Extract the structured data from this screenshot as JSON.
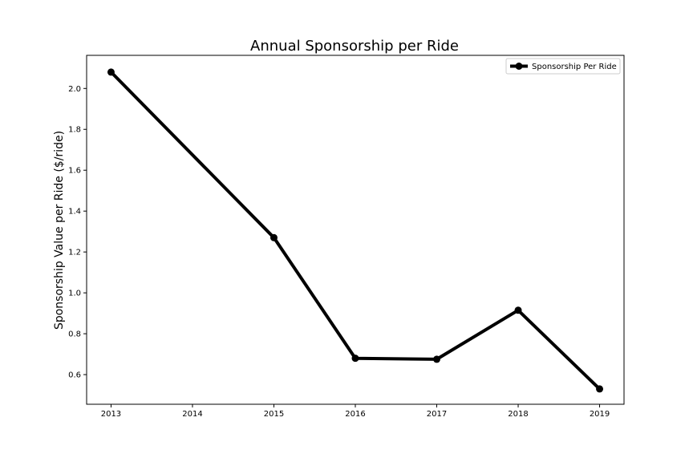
{
  "chart_data": {
    "type": "line",
    "title": "Annual Sponsorship per Ride",
    "xlabel": "",
    "ylabel": "Sponsorship Value per Ride ($/ride)",
    "x": [
      2013,
      2015,
      2016,
      2017,
      2018,
      2019
    ],
    "x_ticks": [
      "2013",
      "2014",
      "2015",
      "2016",
      "2017",
      "2018",
      "2019"
    ],
    "y_ticks": [
      "0.6",
      "0.8",
      "1.0",
      "1.2",
      "1.4",
      "1.6",
      "1.8",
      "2.0"
    ],
    "xlim": [
      2012.7,
      2019.3
    ],
    "ylim": [
      0.455,
      2.162
    ],
    "grid": false,
    "legend_position": "upper right",
    "series": [
      {
        "name": "Sponsorship Per Ride",
        "color": "#000000",
        "marker": "circle",
        "values": [
          2.08,
          1.27,
          0.68,
          0.675,
          0.915,
          0.53
        ]
      }
    ]
  }
}
